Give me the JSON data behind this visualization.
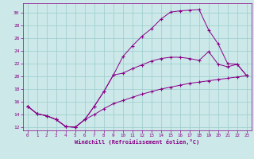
{
  "xlabel": "Windchill (Refroidissement éolien,°C)",
  "bg_color": "#cce8e8",
  "line_color": "#880088",
  "grid_color": "#99cccc",
  "series1_y": [
    15.3,
    14.1,
    13.8,
    13.2,
    12.1,
    12.0,
    13.2,
    15.3,
    17.6,
    20.2,
    23.1,
    24.8,
    26.3,
    27.5,
    29.0,
    30.1,
    30.3,
    30.4,
    30.5,
    27.3,
    25.1,
    22.0,
    21.9,
    20.1
  ],
  "series2_y": [
    15.3,
    14.1,
    13.8,
    13.2,
    12.1,
    12.0,
    13.2,
    15.3,
    17.6,
    20.2,
    20.5,
    21.2,
    21.8,
    22.4,
    22.8,
    23.0,
    23.0,
    22.8,
    22.5,
    23.9,
    21.9,
    21.5,
    21.9,
    20.1
  ],
  "series3_y": [
    15.3,
    14.1,
    13.8,
    13.2,
    12.1,
    12.0,
    13.2,
    14.0,
    14.9,
    15.7,
    16.2,
    16.7,
    17.2,
    17.6,
    18.0,
    18.3,
    18.6,
    18.9,
    19.1,
    19.3,
    19.5,
    19.7,
    19.9,
    20.1
  ],
  "xlim": [
    -0.5,
    23.5
  ],
  "ylim": [
    11.5,
    31.5
  ],
  "yticks": [
    12,
    14,
    16,
    18,
    20,
    22,
    24,
    26,
    28,
    30
  ],
  "xticks": [
    0,
    1,
    2,
    3,
    4,
    5,
    6,
    7,
    8,
    9,
    10,
    11,
    12,
    13,
    14,
    15,
    16,
    17,
    18,
    19,
    20,
    21,
    22,
    23
  ]
}
